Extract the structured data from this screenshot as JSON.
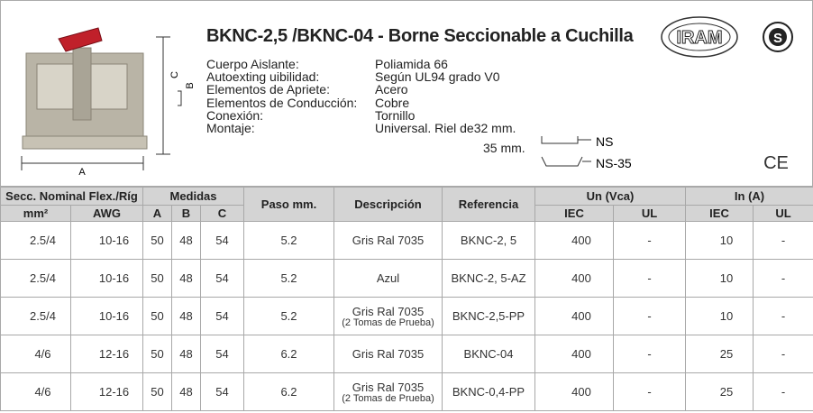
{
  "header": {
    "title": "BKNC-2,5 /BKNC-04 - Borne Seccionable  a Cuchilla",
    "dimensions": [
      "A",
      "B",
      "C"
    ],
    "specs": [
      {
        "label": "Cuerpo Aislante:",
        "value": "Poliamida 66"
      },
      {
        "label": "Autoexting uibilidad:",
        "value": "Según UL94 grado V0"
      },
      {
        "label": "Elementos de Apriete:",
        "value": "Acero"
      },
      {
        "label": "Elementos de Conducción:",
        "value": "Cobre"
      },
      {
        "label": "Conexión:",
        "value": "Tornillo"
      },
      {
        "label": "Montaje:",
        "value": "Universal. Riel de32 mm."
      }
    ],
    "mount_second_line": "35 mm.",
    "rail_labels": [
      "NS",
      "NS-35"
    ],
    "logos": [
      "IRAM",
      "S"
    ],
    "ce_mark": "CE"
  },
  "table": {
    "group_headers": [
      "Secc. Nominal Flex./Ríg",
      "Medidas",
      "Paso mm.",
      "Descripción",
      "Referencia",
      "Un (Vca)",
      "In (A)"
    ],
    "sub_headers": [
      "mm²",
      "AWG",
      "A",
      "B",
      "C",
      "IEC",
      "UL",
      "IEC",
      "UL"
    ],
    "rows": [
      [
        "2.5/4",
        "10-16",
        "50",
        "48",
        "54",
        "5.2",
        [
          "Gris Ral 7035"
        ],
        "BKNC-2, 5",
        "400",
        "-",
        "10",
        "-"
      ],
      [
        "2.5/4",
        "10-16",
        "50",
        "48",
        "54",
        "5.2",
        [
          "Azul"
        ],
        "BKNC-2, 5-AZ",
        "400",
        "-",
        "10",
        "-"
      ],
      [
        "2.5/4",
        "10-16",
        "50",
        "48",
        "54",
        "5.2",
        [
          "Gris Ral 7035",
          "(2 Tomas de Prueba)"
        ],
        "BKNC-2,5-PP",
        "400",
        "-",
        "10",
        "-"
      ],
      [
        "4/6",
        "12-16",
        "50",
        "48",
        "54",
        "6.2",
        [
          "Gris Ral 7035"
        ],
        "BKNC-04",
        "400",
        "-",
        "25",
        "-"
      ],
      [
        "4/6",
        "12-16",
        "50",
        "48",
        "54",
        "6.2",
        [
          "Gris Ral 7035",
          "(2 Tomas de Prueba)"
        ],
        "BKNC-0,4-PP",
        "400",
        "-",
        "25",
        "-"
      ]
    ]
  }
}
